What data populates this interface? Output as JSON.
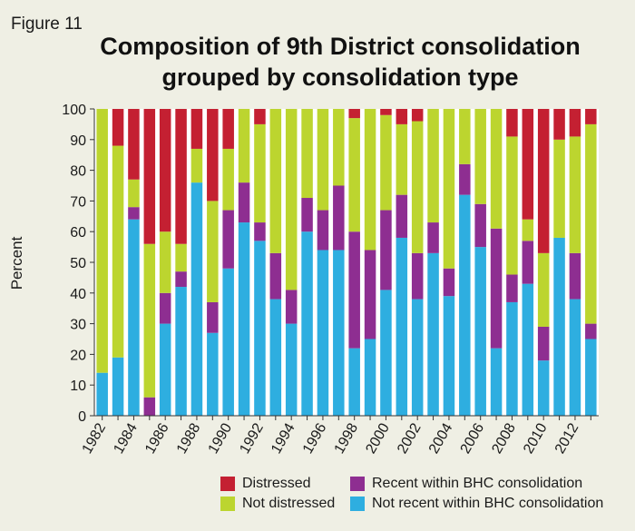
{
  "figure_label": "Figure 11",
  "chart_data": {
    "type": "bar",
    "stacked": true,
    "title_lines": [
      "Composition of 9th District consolidation",
      "grouped by consolidation type"
    ],
    "xlabel": "",
    "ylabel": "Percent",
    "ylim": [
      0,
      100
    ],
    "yticks": [
      0,
      10,
      20,
      30,
      40,
      50,
      60,
      70,
      80,
      90,
      100
    ],
    "grid": false,
    "legend_position": "bottom",
    "categories": [
      "1982",
      "1983",
      "1984",
      "1985",
      "1986",
      "1987",
      "1988",
      "1989",
      "1990",
      "1991",
      "1992",
      "1993",
      "1994",
      "1995",
      "1996",
      "1997",
      "1998",
      "1999",
      "2000",
      "2001",
      "2002",
      "2003",
      "2004",
      "2005",
      "2006",
      "2007",
      "2008",
      "2009",
      "2010",
      "2011",
      "2012",
      "2013"
    ],
    "x_tick_labels": [
      "1982",
      "",
      "1984",
      "",
      "1986",
      "",
      "1988",
      "",
      "1990",
      "",
      "1992",
      "",
      "1994",
      "",
      "1996",
      "",
      "1998",
      "",
      "2000",
      "",
      "2002",
      "",
      "2004",
      "",
      "2006",
      "",
      "2008",
      "",
      "2010",
      "",
      "2012",
      ""
    ],
    "series": [
      {
        "name": "Not recent within BHC consolidation",
        "color": "#2eaee0",
        "values": [
          14,
          19,
          64,
          0,
          30,
          42,
          76,
          27,
          48,
          63,
          57,
          38,
          30,
          60,
          54,
          54,
          22,
          25,
          41,
          58,
          38,
          53,
          39,
          72,
          55,
          22,
          37,
          43,
          18,
          58,
          38,
          25
        ]
      },
      {
        "name": "Recent within BHC consolidation",
        "color": "#8e2e91",
        "values": [
          0,
          0,
          4,
          6,
          10,
          5,
          0,
          10,
          19,
          13,
          6,
          15,
          11,
          11,
          13,
          21,
          38,
          29,
          26,
          14,
          15,
          10,
          9,
          10,
          14,
          39,
          9,
          14,
          11,
          0,
          15,
          5
        ]
      },
      {
        "name": "Not distressed",
        "color": "#bcd52f",
        "values": [
          86,
          69,
          9,
          50,
          20,
          9,
          11,
          33,
          20,
          24,
          32,
          47,
          59,
          29,
          33,
          25,
          37,
          46,
          31,
          23,
          43,
          37,
          52,
          18,
          31,
          39,
          45,
          7,
          24,
          32,
          38,
          65
        ]
      },
      {
        "name": "Distressed",
        "color": "#c42032",
        "values": [
          0,
          12,
          23,
          44,
          40,
          44,
          13,
          30,
          13,
          0,
          5,
          0,
          0,
          0,
          0,
          0,
          3,
          0,
          2,
          5,
          4,
          0,
          0,
          0,
          0,
          0,
          9,
          36,
          47,
          10,
          9,
          5
        ]
      }
    ]
  },
  "legend": [
    {
      "label": "Distressed",
      "color": "#c42032"
    },
    {
      "label": "Recent within BHC consolidation",
      "color": "#8e2e91"
    },
    {
      "label": "Not distressed",
      "color": "#bcd52f"
    },
    {
      "label": "Not recent within BHC consolidation",
      "color": "#2eaee0"
    }
  ]
}
